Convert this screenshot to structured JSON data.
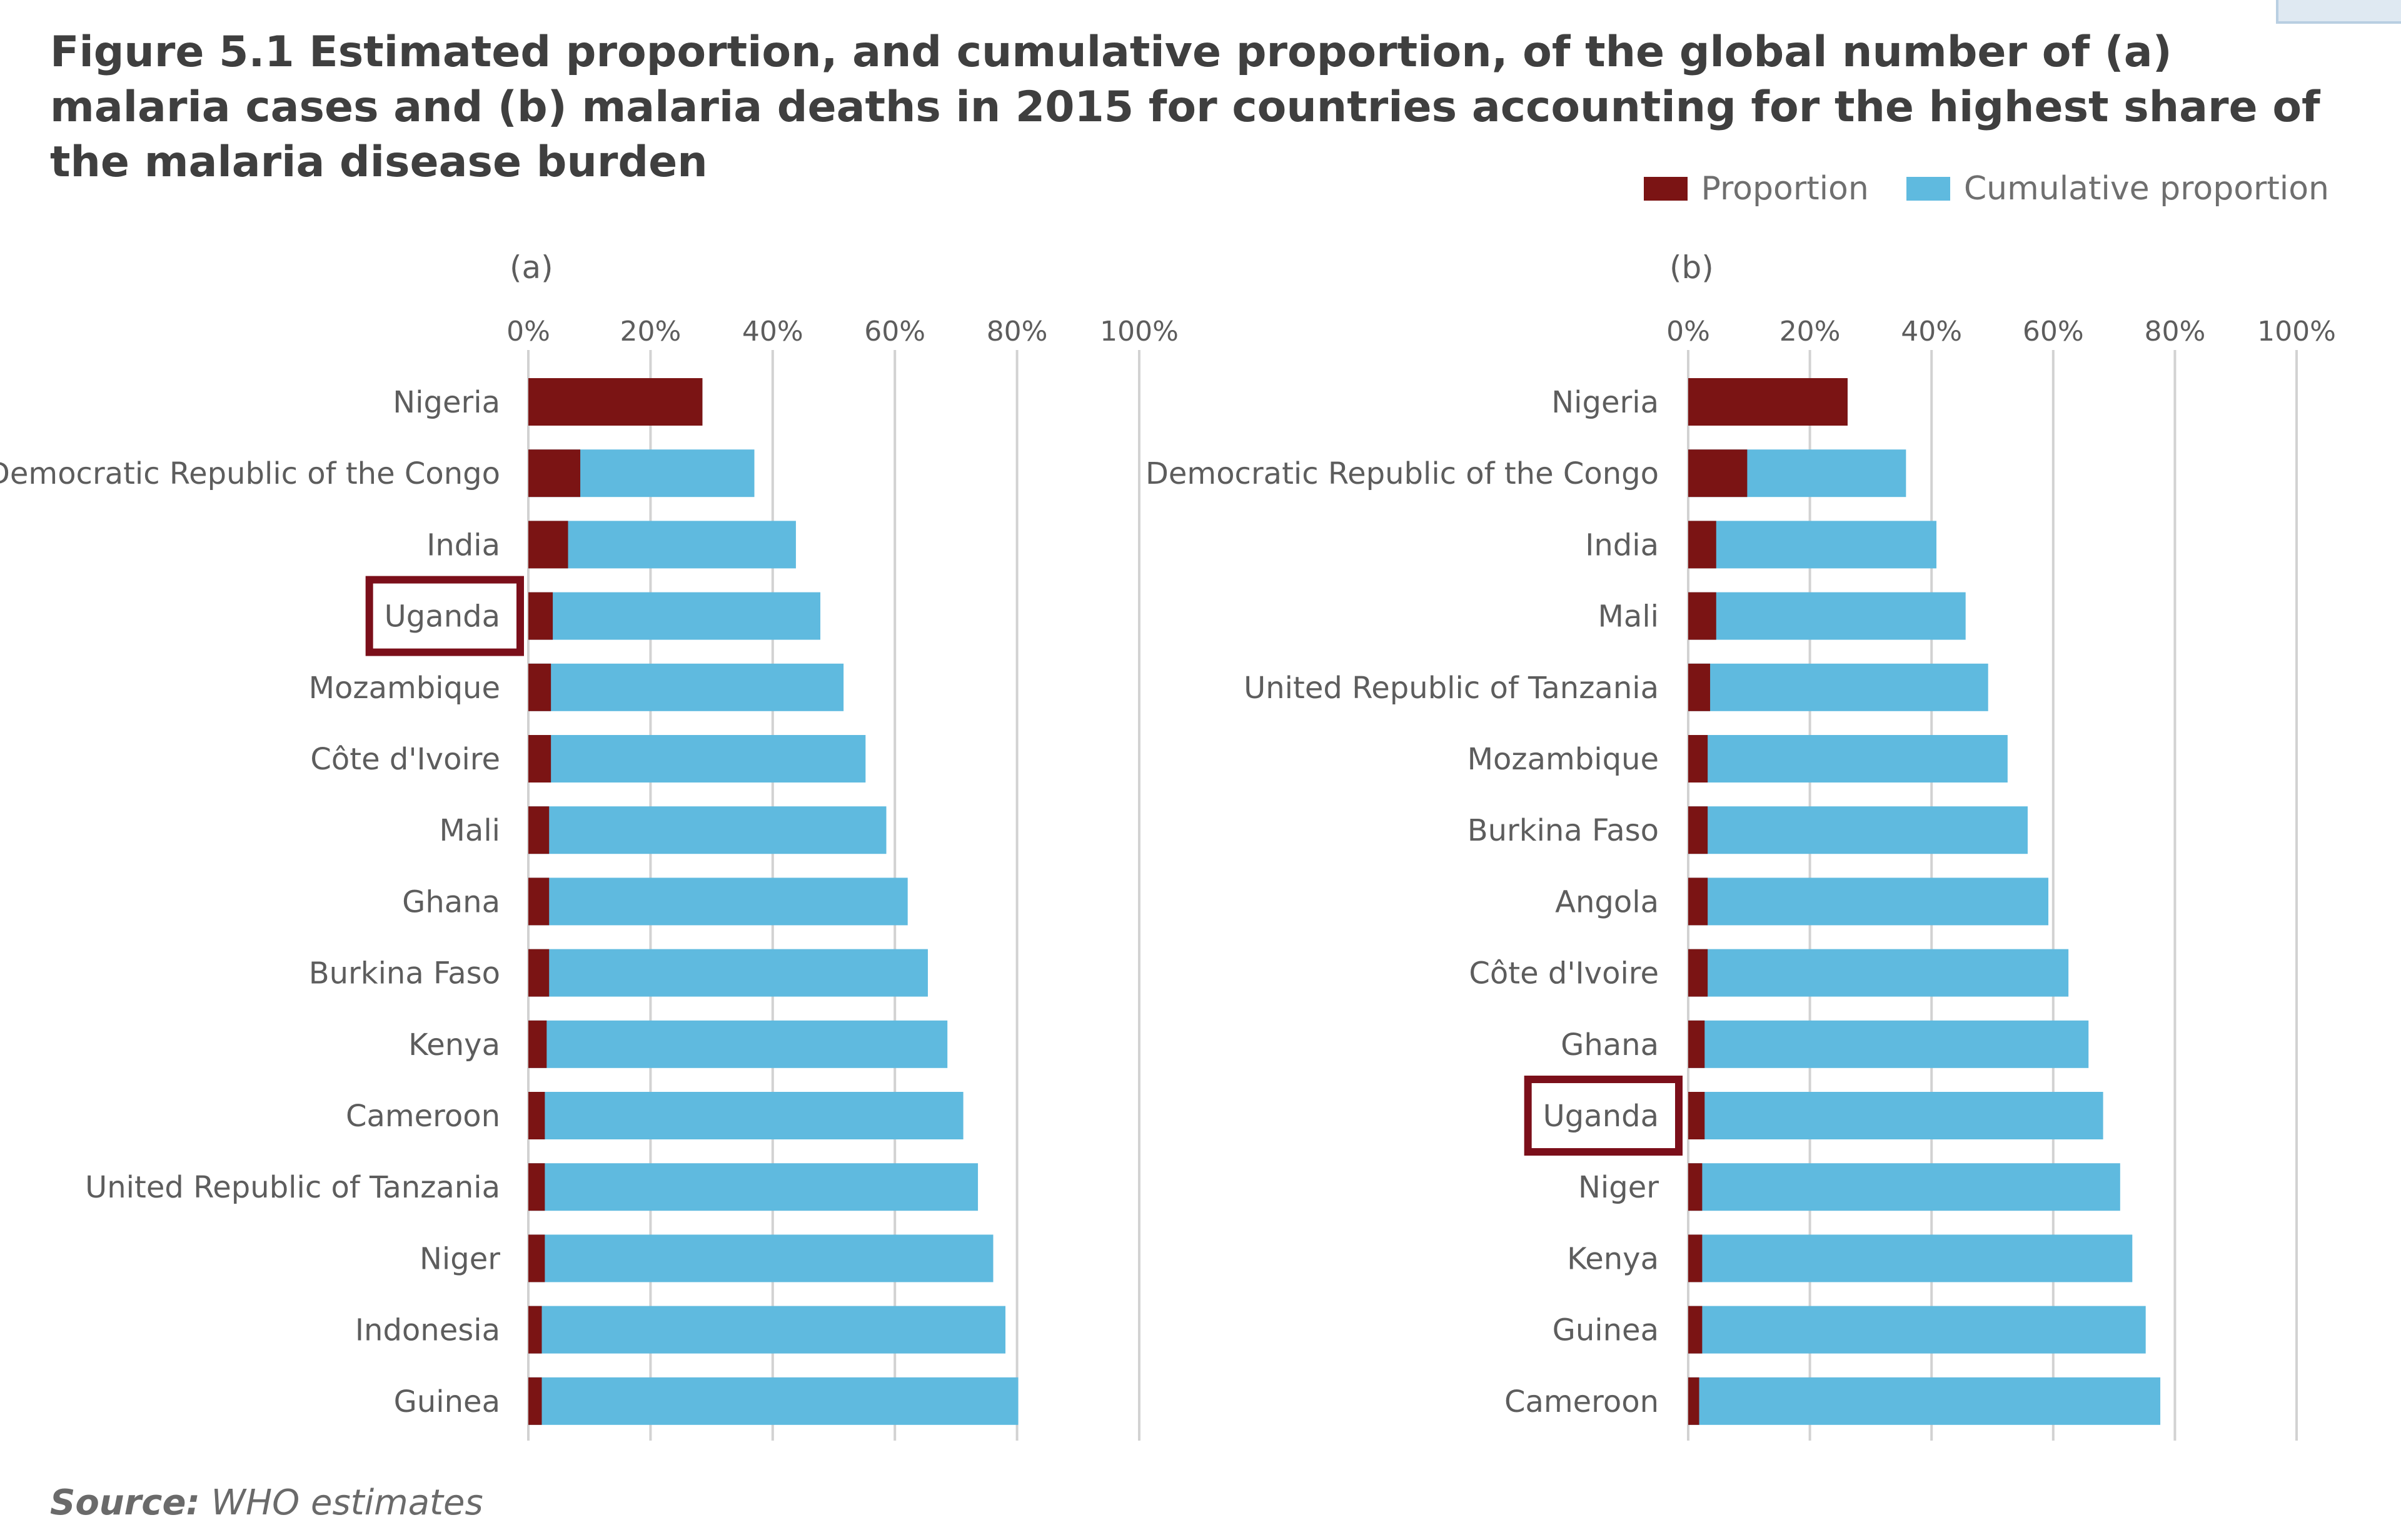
{
  "title": "Figure 5.1 Estimated proportion, and cumulative proportion, of the global number of (a) malaria cases and (b) malaria deaths in 2015 for countries accounting for the highest share of the malaria disease burden",
  "legend": {
    "proportion": "Proportion",
    "cumulative": "Cumulative proportion"
  },
  "colors": {
    "proportion": "#7b1414",
    "cumulative": "#5fbadf",
    "highlight": "#7b0f1a",
    "grid": "#d2d2d2"
  },
  "source": {
    "label": "Source:",
    "text": "WHO estimates"
  },
  "chart_data": [
    {
      "type": "bar",
      "orientation": "horizontal",
      "stacked": true,
      "panel_label": "(a)",
      "xlim": [
        0,
        100
      ],
      "xticks": [
        "0%",
        "20%",
        "40%",
        "60%",
        "80%",
        "100%"
      ],
      "highlight": "Uganda",
      "categories": [
        "Nigeria",
        "Democratic Republic of the Congo",
        "India",
        "Uganda",
        "Mozambique",
        "Côte d'Ivoire",
        "Mali",
        "Ghana",
        "Burkina Faso",
        "Kenya",
        "Cameroon",
        "United Republic of Tanzania",
        "Niger",
        "Indonesia",
        "Guinea"
      ],
      "series": [
        {
          "name": "Proportion",
          "values": [
            28.5,
            8.5,
            6.5,
            4,
            3.7,
            3.7,
            3.4,
            3.4,
            3.4,
            3,
            2.7,
            2.7,
            2.7,
            2.2,
            2.2
          ]
        },
        {
          "name": "Cumulative proportion",
          "values": [
            28.5,
            37,
            43.8,
            47.8,
            51.6,
            55.2,
            58.6,
            62.1,
            65.4,
            68.6,
            71.2,
            73.6,
            76.1,
            78.1,
            80.2
          ]
        }
      ]
    },
    {
      "type": "bar",
      "orientation": "horizontal",
      "stacked": true,
      "panel_label": "(b)",
      "xlim": [
        0,
        100
      ],
      "xticks": [
        "0%",
        "20%",
        "40%",
        "60%",
        "80%",
        "100%"
      ],
      "highlight": "Uganda",
      "categories": [
        "Nigeria",
        "Democratic Republic of the Congo",
        "India",
        "Mali",
        "United Republic of Tanzania",
        "Mozambique",
        "Burkina Faso",
        "Angola",
        "Côte d'Ivoire",
        "Ghana",
        "Uganda",
        "Niger",
        "Kenya",
        "Guinea",
        "Cameroon"
      ],
      "series": [
        {
          "name": "Proportion",
          "values": [
            26.2,
            9.7,
            4.6,
            4.6,
            3.6,
            3.2,
            3.2,
            3.2,
            3.2,
            2.7,
            2.7,
            2.3,
            2.3,
            2.3,
            1.8
          ]
        },
        {
          "name": "Cumulative proportion",
          "values": [
            26.2,
            35.8,
            40.8,
            45.6,
            49.3,
            52.5,
            55.8,
            59.2,
            62.5,
            65.8,
            68.2,
            71,
            73,
            75.2,
            77.6
          ]
        }
      ]
    }
  ]
}
